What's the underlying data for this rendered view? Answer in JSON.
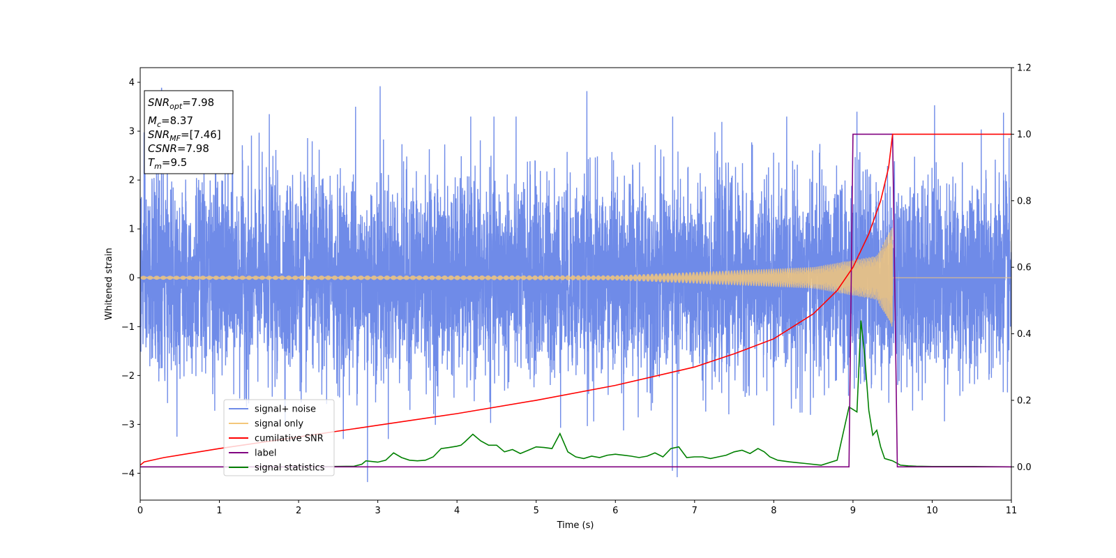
{
  "chart_data": {
    "type": "line",
    "xlabel": "Time (s)",
    "ylabel": "Whitened strain",
    "xlim": [
      0,
      11
    ],
    "ylim": [
      -4.55,
      4.3
    ],
    "y2lim": [
      -0.1,
      1.2
    ],
    "x_ticks": [
      0,
      1,
      2,
      3,
      4,
      5,
      6,
      7,
      8,
      9,
      10,
      11
    ],
    "y_ticks": [
      -4,
      -3,
      -2,
      -1,
      0,
      1,
      2,
      3,
      4
    ],
    "y_tick_labels": [
      "−4",
      "−3",
      "−2",
      "−1",
      "0",
      "1",
      "2",
      "3",
      "4"
    ],
    "y2_ticks": [
      0.0,
      0.2,
      0.4,
      0.6,
      0.8,
      1.0,
      1.2
    ],
    "y2_tick_labels": [
      "0.0",
      "0.2",
      "0.4",
      "0.6",
      "0.8",
      "1.0",
      "1.2"
    ],
    "legend": {
      "position": "lower-left",
      "entries": [
        {
          "label": "signal+ noise",
          "color": "#6f8be8"
        },
        {
          "label": "signal only",
          "color": "#f4c77a"
        },
        {
          "label": "cumilative SNR",
          "color": "#ff0000"
        },
        {
          "label": "label",
          "color": "#800080"
        },
        {
          "label": "signal statistics",
          "color": "#008000"
        }
      ]
    },
    "annotation": {
      "lines": [
        {
          "var": "SNR",
          "sub": "opt",
          "val": "=7.98"
        },
        {
          "var": "M",
          "sub": "c",
          "val": "=8.37"
        },
        {
          "var": "SNR",
          "sub": "MF",
          "val": "=[7.46]"
        },
        {
          "var": "CSNR",
          "sub": "",
          "val": "=7.98"
        },
        {
          "var": "T",
          "sub": "m",
          "val": "=9.5"
        }
      ]
    },
    "series": [
      {
        "name": "signal+ noise",
        "axis": "left",
        "color": "#6f8be8",
        "kind": "noise",
        "std": 1.0,
        "t_start": 0,
        "t_end": 11,
        "peaks_x": [
          0.27,
          0.95,
          1.63,
          2.72,
          2.87,
          3.03,
          5.64,
          6.72,
          6.78,
          9.05,
          10.03,
          10.9
        ],
        "peaks_y": [
          3.88,
          3.2,
          3.35,
          3.5,
          -4.18,
          3.92,
          3.82,
          -3.95,
          -4.08,
          3.4,
          3.53,
          3.38
        ]
      },
      {
        "name": "signal only",
        "axis": "left",
        "color": "#f4c77a",
        "kind": "chirp",
        "t_start": 0,
        "t_merge": 9.5,
        "t_end": 11,
        "amplitude_at": [
          [
            0,
            0.04
          ],
          [
            6,
            0.05
          ],
          [
            8.5,
            0.22
          ],
          [
            9.3,
            0.45
          ],
          [
            9.5,
            1.05
          ]
        ]
      },
      {
        "name": "cumilative SNR",
        "axis": "right",
        "color": "#ff0000",
        "x": [
          0,
          0.05,
          0.3,
          1,
          2,
          3,
          4,
          5,
          6,
          7,
          7.5,
          8,
          8.5,
          8.8,
          9.0,
          9.2,
          9.35,
          9.45,
          9.5,
          11
        ],
        "y": [
          0.005,
          0.015,
          0.028,
          0.055,
          0.09,
          0.125,
          0.16,
          0.2,
          0.245,
          0.3,
          0.34,
          0.385,
          0.46,
          0.53,
          0.6,
          0.7,
          0.8,
          0.9,
          1.0,
          1.0
        ]
      },
      {
        "name": "label",
        "axis": "right",
        "color": "#800080",
        "x": [
          0,
          8.95,
          9.0,
          9.5,
          9.56,
          11
        ],
        "y": [
          0,
          0,
          1,
          1,
          0,
          0
        ]
      },
      {
        "name": "signal statistics",
        "axis": "right",
        "color": "#008000",
        "x": [
          0,
          0.5,
          1,
          2,
          2.7,
          2.8,
          2.85,
          3.0,
          3.1,
          3.2,
          3.3,
          3.4,
          3.5,
          3.6,
          3.7,
          3.8,
          3.9,
          4.0,
          4.05,
          4.1,
          4.2,
          4.3,
          4.4,
          4.5,
          4.6,
          4.7,
          4.8,
          4.9,
          5.0,
          5.1,
          5.2,
          5.3,
          5.4,
          5.5,
          5.6,
          5.7,
          5.8,
          5.9,
          6.0,
          6.1,
          6.2,
          6.3,
          6.4,
          6.5,
          6.6,
          6.7,
          6.8,
          6.9,
          7.0,
          7.1,
          7.2,
          7.3,
          7.4,
          7.5,
          7.6,
          7.7,
          7.8,
          7.88,
          7.95,
          8.05,
          8.2,
          8.4,
          8.6,
          8.8,
          8.95,
          9.05,
          9.1,
          9.15,
          9.2,
          9.25,
          9.3,
          9.35,
          9.4,
          9.5,
          9.6,
          9.7,
          9.8,
          10.0,
          10.5,
          11
        ],
        "y": [
          0.0,
          0.0,
          0.0,
          0.0,
          0.002,
          0.008,
          0.018,
          0.014,
          0.02,
          0.042,
          0.028,
          0.02,
          0.018,
          0.02,
          0.03,
          0.055,
          0.058,
          0.062,
          0.065,
          0.075,
          0.098,
          0.078,
          0.065,
          0.065,
          0.045,
          0.052,
          0.04,
          0.05,
          0.06,
          0.058,
          0.055,
          0.1,
          0.045,
          0.03,
          0.025,
          0.032,
          0.028,
          0.035,
          0.038,
          0.035,
          0.032,
          0.028,
          0.032,
          0.042,
          0.03,
          0.055,
          0.06,
          0.028,
          0.03,
          0.03,
          0.025,
          0.03,
          0.035,
          0.045,
          0.05,
          0.04,
          0.055,
          0.045,
          0.03,
          0.02,
          0.015,
          0.01,
          0.005,
          0.02,
          0.18,
          0.165,
          0.44,
          0.33,
          0.17,
          0.095,
          0.11,
          0.06,
          0.025,
          0.018,
          0.005,
          0.003,
          0.002,
          0.001,
          0.001,
          0.0
        ]
      }
    ]
  }
}
